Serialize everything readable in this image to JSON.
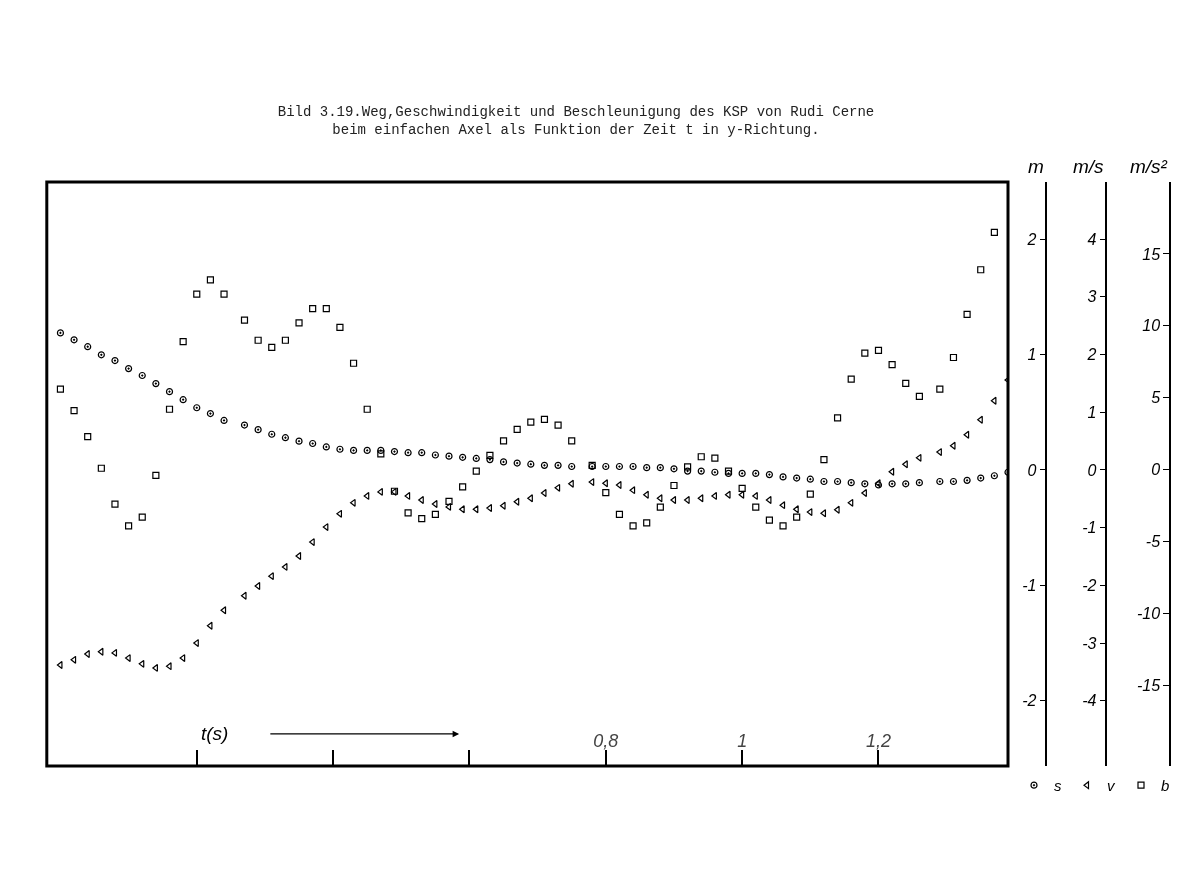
{
  "chart_data": {
    "type": "scatter",
    "title": "Bild 3.19.Weg,Geschwindigkeit und Beschleunigung des KSP von Rudi Cerne\nbeim einfachen Axel als Funktion der Zeit t in y-Richtung.",
    "xlabel": "t(s)",
    "ylabel": "m",
    "y2label": "m/s",
    "y3label": "m/s²",
    "x": [
      0,
      0.02,
      0.04,
      0.06,
      0.08,
      0.1,
      0.12,
      0.14,
      0.16,
      0.18,
      0.2,
      0.22,
      0.24,
      0.27,
      0.29,
      0.31,
      0.33,
      0.35,
      0.37,
      0.39,
      0.41,
      0.43,
      0.45,
      0.47,
      0.49,
      0.51,
      0.53,
      0.55,
      0.57,
      0.59,
      0.61,
      0.63,
      0.65,
      0.67,
      0.69,
      0.71,
      0.73,
      0.75,
      0.78,
      0.8,
      0.82,
      0.84,
      0.86,
      0.88,
      0.9,
      0.92,
      0.94,
      0.96,
      0.98,
      1.0,
      1.02,
      1.04,
      1.06,
      1.08,
      1.1,
      1.12,
      1.14,
      1.16,
      1.18,
      1.2,
      1.22,
      1.24,
      1.26,
      1.29,
      1.31,
      1.33,
      1.35,
      1.37,
      1.39
    ],
    "series": [
      {
        "name": "s",
        "color": "#000000",
        "marker": "circle",
        "axis": "y",
        "values": [
          1.19,
          1.13,
          1.07,
          1.0,
          0.95,
          0.88,
          0.82,
          0.75,
          0.68,
          0.61,
          0.54,
          0.49,
          0.43,
          0.39,
          0.35,
          0.31,
          0.28,
          0.25,
          0.23,
          0.2,
          0.18,
          0.17,
          0.17,
          0.17,
          0.16,
          0.15,
          0.15,
          0.13,
          0.12,
          0.11,
          0.1,
          0.09,
          0.07,
          0.06,
          0.05,
          0.04,
          0.04,
          0.03,
          0.03,
          0.03,
          0.03,
          0.03,
          0.02,
          0.02,
          0.01,
          -0.01,
          -0.01,
          -0.02,
          -0.03,
          -0.03,
          -0.03,
          -0.04,
          -0.06,
          -0.07,
          -0.08,
          -0.1,
          -0.1,
          -0.11,
          -0.12,
          -0.13,
          -0.12,
          -0.12,
          -0.11,
          -0.1,
          -0.1,
          -0.09,
          -0.07,
          -0.05,
          -0.02
        ]
      },
      {
        "name": "v",
        "color": "#000000",
        "marker": "triangle",
        "axis": "y2",
        "values": [
          -3.38,
          -3.29,
          -3.19,
          -3.15,
          -3.17,
          -3.26,
          -3.36,
          -3.43,
          -3.4,
          -3.26,
          -3.0,
          -2.7,
          -2.43,
          -2.18,
          -2.01,
          -1.84,
          -1.68,
          -1.49,
          -1.25,
          -0.99,
          -0.76,
          -0.57,
          -0.45,
          -0.38,
          -0.38,
          -0.45,
          -0.52,
          -0.59,
          -0.64,
          -0.68,
          -0.68,
          -0.66,
          -0.62,
          -0.55,
          -0.49,
          -0.4,
          -0.31,
          -0.24,
          -0.21,
          -0.23,
          -0.26,
          -0.35,
          -0.43,
          -0.49,
          -0.52,
          -0.52,
          -0.49,
          -0.45,
          -0.43,
          -0.43,
          -0.45,
          -0.52,
          -0.61,
          -0.68,
          -0.73,
          -0.75,
          -0.69,
          -0.57,
          -0.4,
          -0.23,
          -0.03,
          0.1,
          0.21,
          0.31,
          0.42,
          0.61,
          0.87,
          1.2,
          1.56
        ]
      },
      {
        "name": "b",
        "color": "#000000",
        "marker": "square",
        "axis": "y3",
        "values": [
          5.6,
          4.1,
          2.3,
          0.1,
          -2.4,
          -3.9,
          -3.3,
          -0.4,
          4.2,
          8.9,
          12.2,
          13.2,
          12.2,
          10.4,
          9.0,
          8.5,
          9.0,
          10.2,
          11.2,
          11.2,
          9.9,
          7.4,
          4.2,
          1.1,
          -1.5,
          -3.0,
          -3.4,
          -3.1,
          -2.2,
          -1.2,
          -0.1,
          1.0,
          2.0,
          2.8,
          3.3,
          3.5,
          3.1,
          2.0,
          0.3,
          -1.6,
          -3.1,
          -3.9,
          -3.7,
          -2.6,
          -1.1,
          0.2,
          0.9,
          0.8,
          -0.1,
          -1.3,
          -2.6,
          -3.5,
          -3.9,
          -3.3,
          -1.7,
          0.7,
          3.6,
          6.3,
          8.1,
          8.3,
          7.3,
          6.0,
          5.1,
          5.6,
          7.8,
          10.8,
          13.9,
          16.5,
          null
        ]
      }
    ],
    "xlim": [
      -0.02,
      1.39
    ],
    "xticks": [
      {
        "value": 0.2,
        "label": null
      },
      {
        "value": 0.4,
        "label": null
      },
      {
        "value": 0.6,
        "label": null
      },
      {
        "value": 0.8,
        "label": "0,8"
      },
      1,
      {
        "value": 1.2,
        "label": "1,2"
      }
    ],
    "ylim": [
      -2.57,
      2.5
    ],
    "yticks": [
      -2,
      -1,
      0,
      1,
      2
    ],
    "y2lim": [
      -5.13,
      4.99
    ],
    "y2ticks": [
      -4,
      -3,
      -2,
      -1,
      0,
      1,
      2,
      3,
      4
    ],
    "y3lim": [
      -20.6,
      20.0
    ],
    "y3ticks": [
      -15,
      -10,
      -5,
      0,
      5,
      10,
      15
    ],
    "legend": "bottom right"
  }
}
